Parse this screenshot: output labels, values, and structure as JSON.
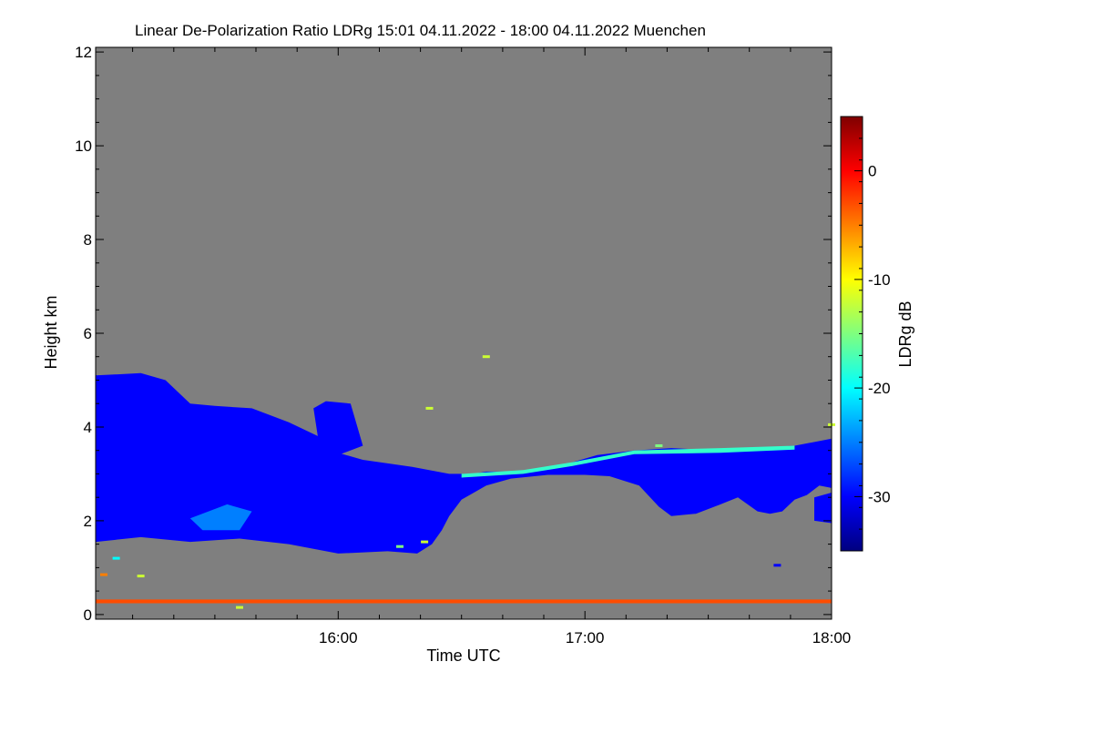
{
  "chart_data": {
    "type": "heatmap",
    "title": "Linear De-Polarization Ratio LDRg   15:01 04.11.2022 - 18:00 04.11.2022 Muenchen",
    "xlabel": "Time UTC",
    "ylabel": "Height km",
    "x_range": [
      "15:01",
      "18:00"
    ],
    "xlim_hours": [
      15.0167,
      18.0
    ],
    "x_ticks": [
      {
        "label": "16:00",
        "value": 16.0
      },
      {
        "label": "17:00",
        "value": 17.0
      },
      {
        "label": "18:00",
        "value": 18.0
      }
    ],
    "ylim": [
      -0.1,
      12.1
    ],
    "y_ticks": [
      0,
      2,
      4,
      6,
      8,
      10,
      12
    ],
    "y_tick_labels": [
      "0",
      "2",
      "4",
      "6",
      "8",
      "10",
      "12"
    ],
    "no_data_color": "#7f7f7f",
    "colorbar": {
      "label": "LDRg dB",
      "range": [
        -35,
        5
      ],
      "ticks": [
        0,
        -10,
        -20,
        -30
      ],
      "tick_labels": [
        "0",
        "-10",
        "-20",
        "-30"
      ],
      "colormap": [
        "#00007f",
        "#0000ff",
        "#007fff",
        "#00ffff",
        "#7fff7f",
        "#ffff00",
        "#ff7f00",
        "#ff0000",
        "#7f0000"
      ]
    },
    "features": [
      {
        "name": "main aerosol/cloud layer",
        "ldr_db": -30,
        "outline": [
          [
            15.017,
            5.1
          ],
          [
            15.2,
            5.15
          ],
          [
            15.3,
            5.0
          ],
          [
            15.4,
            4.5
          ],
          [
            15.5,
            4.45
          ],
          [
            15.65,
            4.4
          ],
          [
            15.8,
            4.1
          ],
          [
            15.92,
            3.8
          ],
          [
            16.0,
            3.45
          ],
          [
            16.1,
            3.3
          ],
          [
            16.3,
            3.15
          ],
          [
            16.45,
            3.0
          ],
          [
            16.55,
            3.0
          ],
          [
            16.6,
            3.05
          ],
          [
            16.75,
            3.05
          ],
          [
            16.85,
            3.1
          ],
          [
            16.95,
            3.25
          ],
          [
            17.05,
            3.4
          ],
          [
            17.2,
            3.5
          ],
          [
            17.35,
            3.55
          ],
          [
            17.55,
            3.5
          ],
          [
            17.7,
            3.55
          ],
          [
            17.85,
            3.6
          ],
          [
            18.0,
            3.75
          ],
          [
            18.0,
            2.7
          ],
          [
            17.95,
            2.75
          ],
          [
            17.9,
            2.55
          ],
          [
            17.85,
            2.45
          ],
          [
            17.8,
            2.2
          ],
          [
            17.75,
            2.15
          ],
          [
            17.7,
            2.2
          ],
          [
            17.62,
            2.5
          ],
          [
            17.55,
            2.35
          ],
          [
            17.45,
            2.15
          ],
          [
            17.35,
            2.1
          ],
          [
            17.3,
            2.3
          ],
          [
            17.22,
            2.75
          ],
          [
            17.1,
            2.95
          ],
          [
            17.0,
            2.98
          ],
          [
            16.85,
            2.98
          ],
          [
            16.7,
            2.9
          ],
          [
            16.6,
            2.75
          ],
          [
            16.55,
            2.6
          ],
          [
            16.5,
            2.45
          ],
          [
            16.45,
            2.1
          ],
          [
            16.42,
            1.8
          ],
          [
            16.38,
            1.5
          ],
          [
            16.32,
            1.3
          ],
          [
            16.2,
            1.35
          ],
          [
            16.0,
            1.3
          ],
          [
            15.8,
            1.5
          ],
          [
            15.6,
            1.62
          ],
          [
            15.4,
            1.55
          ],
          [
            15.2,
            1.65
          ],
          [
            15.017,
            1.55
          ]
        ]
      },
      {
        "name": "upper plume",
        "ldr_db": -30,
        "outline": [
          [
            15.9,
            4.4
          ],
          [
            15.95,
            4.55
          ],
          [
            16.05,
            4.5
          ],
          [
            16.1,
            3.6
          ],
          [
            16.0,
            3.4
          ],
          [
            15.92,
            3.7
          ]
        ]
      },
      {
        "name": "lower segment right",
        "ldr_db": -30,
        "outline": [
          [
            17.93,
            2.5
          ],
          [
            18.0,
            2.6
          ],
          [
            18.0,
            1.95
          ],
          [
            17.93,
            2.0
          ]
        ]
      },
      {
        "name": "bright core",
        "ldr_db": -25,
        "outline": [
          [
            15.4,
            2.05
          ],
          [
            15.55,
            2.35
          ],
          [
            15.65,
            2.2
          ],
          [
            15.6,
            1.8
          ],
          [
            15.45,
            1.8
          ]
        ]
      },
      {
        "name": "layer top edge",
        "ldr_db": -18,
        "outline": [
          [
            16.5,
            3.0
          ],
          [
            16.75,
            3.08
          ],
          [
            16.95,
            3.25
          ],
          [
            17.2,
            3.5
          ],
          [
            17.55,
            3.55
          ],
          [
            17.85,
            3.6
          ],
          [
            17.85,
            3.52
          ],
          [
            17.55,
            3.45
          ],
          [
            17.2,
            3.42
          ],
          [
            16.95,
            3.17
          ],
          [
            16.75,
            3.0
          ],
          [
            16.5,
            2.92
          ]
        ]
      },
      {
        "name": "near-ground line",
        "ldr_db": -3,
        "outline": [
          [
            15.017,
            0.32
          ],
          [
            18.0,
            0.32
          ],
          [
            18.0,
            0.24
          ],
          [
            15.017,
            0.24
          ]
        ]
      }
    ],
    "annotations": [
      {
        "x": 16.6,
        "y": 5.5,
        "ldr_db": -12
      },
      {
        "x": 16.37,
        "y": 4.4,
        "ldr_db": -12
      },
      {
        "x": 16.35,
        "y": 1.55,
        "ldr_db": -12
      },
      {
        "x": 16.25,
        "y": 1.45,
        "ldr_db": -15
      },
      {
        "x": 17.3,
        "y": 3.6,
        "ldr_db": -15
      },
      {
        "x": 18.0,
        "y": 4.05,
        "ldr_db": -12
      },
      {
        "x": 17.78,
        "y": 1.05,
        "ldr_db": -30
      },
      {
        "x": 15.05,
        "y": 0.85,
        "ldr_db": -5
      },
      {
        "x": 15.2,
        "y": 0.82,
        "ldr_db": -12
      },
      {
        "x": 15.6,
        "y": 0.15,
        "ldr_db": -12
      },
      {
        "x": 15.1,
        "y": 1.2,
        "ldr_db": -20
      }
    ]
  }
}
